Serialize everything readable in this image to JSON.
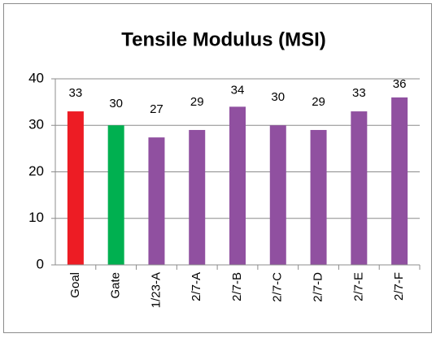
{
  "chart_data": {
    "type": "bar",
    "title": "Tensile Modulus (MSI)",
    "categories": [
      "Goal",
      "Gate",
      "1/23-A",
      "2/7-A",
      "2/7-B",
      "2/7-C",
      "2/7-D",
      "2/7-E",
      "2/7-F"
    ],
    "values": [
      33,
      30,
      27.4,
      29,
      34,
      30,
      29,
      33,
      36
    ],
    "value_labels": [
      "33",
      "30",
      "27",
      "29",
      "34",
      "30",
      "29",
      "33",
      "36"
    ],
    "colors": [
      "#ed1c24",
      "#00b050",
      "#9050a0",
      "#9050a0",
      "#9050a0",
      "#9050a0",
      "#9050a0",
      "#9050a0",
      "#9050a0"
    ],
    "ylim": [
      0,
      40
    ],
    "yticks": [
      0,
      10,
      20,
      30,
      40
    ],
    "grid": true
  }
}
